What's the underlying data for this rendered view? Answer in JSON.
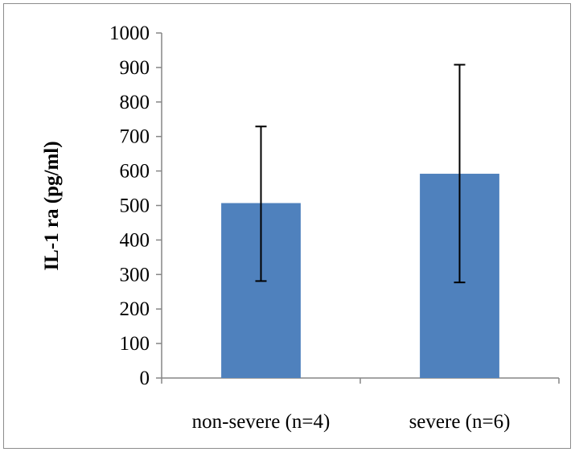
{
  "chart_data": {
    "type": "bar",
    "title": "",
    "xlabel": "",
    "ylabel": "IL-1 ra (pg/ml)",
    "categories": [
      "non-severe (n=4)",
      "severe (n=6)"
    ],
    "values": [
      507,
      592
    ],
    "error_bars": [
      {
        "low": 281,
        "high": 729
      },
      {
        "low": 277,
        "high": 908
      }
    ],
    "ylim": [
      0,
      1000
    ],
    "yticks": [
      "0",
      "100",
      "200",
      "300",
      "400",
      "500",
      "600",
      "700",
      "800",
      "900",
      "1000"
    ],
    "grid": false,
    "legend": "none",
    "bar_color": "#4f81bd",
    "axis_color": "#868686",
    "error_bar_color": "#000000"
  }
}
